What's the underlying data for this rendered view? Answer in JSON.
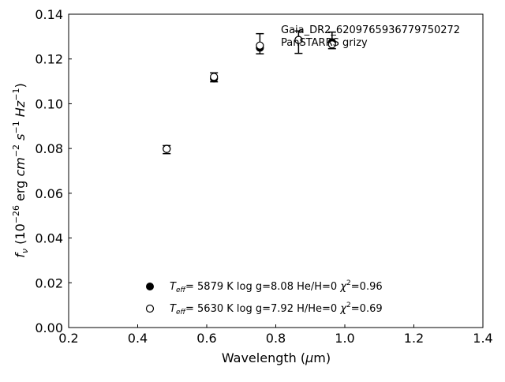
{
  "chart_data": {
    "type": "scatter",
    "title": "",
    "xlabel": "Wavelength (μm)",
    "ylabel": "f_ν (10^-26 erg cm^-2 s^-1 Hz^-1)",
    "xlim": [
      0.2,
      1.4
    ],
    "ylim": [
      0.0,
      0.14
    ],
    "x_ticks": [
      0.2,
      0.4,
      0.6,
      0.8,
      1.0,
      1.2,
      1.4
    ],
    "x_tick_labels": [
      "0.2",
      "0.4",
      "0.6",
      "0.8",
      "1.0",
      "1.2",
      "1.4"
    ],
    "y_ticks": [
      0.0,
      0.02,
      0.04,
      0.06,
      0.08,
      0.1,
      0.12,
      0.14
    ],
    "y_tick_labels": [
      "0.00",
      "0.02",
      "0.04",
      "0.06",
      "0.08",
      "0.10",
      "0.12",
      "0.14"
    ],
    "annotation": [
      "Gaia_DR2_6209765936779750272",
      "PanSTARRS grizy"
    ],
    "observed": {
      "x": [
        0.484,
        0.621,
        0.754,
        0.866,
        0.963
      ],
      "y": [
        0.0795,
        0.1118,
        0.1268,
        0.1275,
        0.1283
      ],
      "yerr": [
        0.0018,
        0.002,
        0.0045,
        0.005,
        0.0037
      ]
    },
    "series": [
      {
        "name": "Teff= 5879 K log g=8.08 He/H=0 χ2=0.96",
        "marker": "filled-circle",
        "x": [
          0.484,
          0.621,
          0.754,
          0.866,
          0.963
        ],
        "y": [
          0.0799,
          0.1113,
          0.125,
          0.1285,
          0.1275
        ]
      },
      {
        "name": "Teff= 5630 K log g=7.92 H/He=0 χ2=0.69",
        "marker": "open-circle",
        "x": [
          0.484,
          0.621,
          0.754,
          0.866,
          0.963
        ],
        "y": [
          0.0798,
          0.112,
          0.126,
          0.1285,
          0.1265
        ]
      }
    ],
    "legend": [
      {
        "marker": "filled-circle",
        "teff_value": "5879 K",
        "logg": "log g=8.08",
        "comp": "He/H=0",
        "chi2": "=0.96"
      },
      {
        "marker": "open-circle",
        "teff_value": "5630 K",
        "logg": "log g=7.92",
        "comp": "H/He=0",
        "chi2": "=0.69"
      }
    ],
    "legend_position": "bottom-center",
    "grid": false
  }
}
